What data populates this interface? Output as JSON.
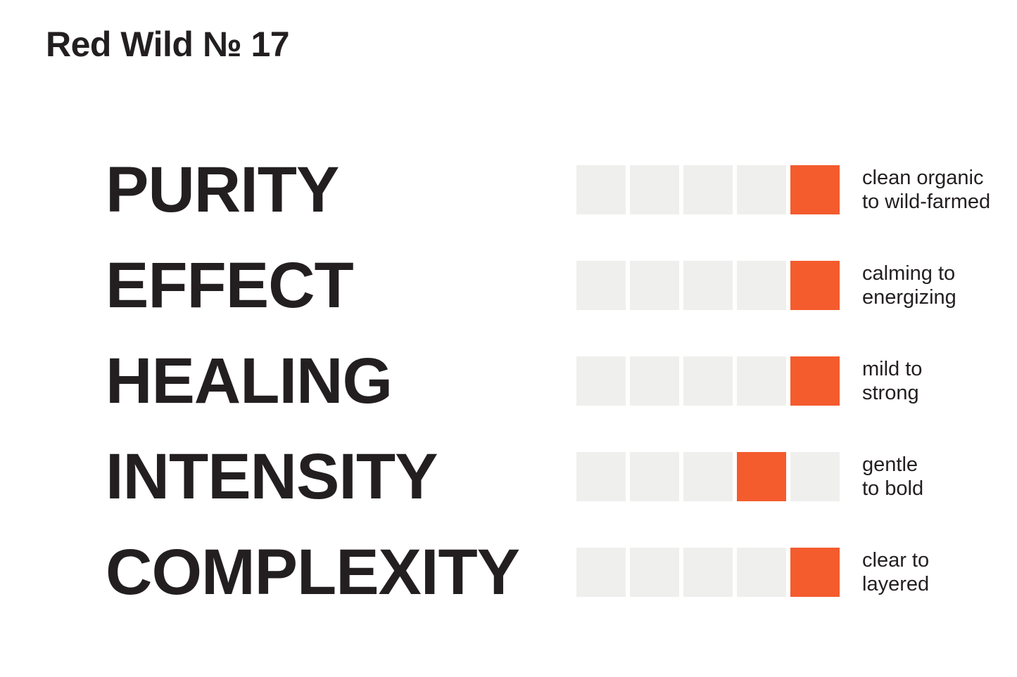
{
  "title": "Red Wild № 17",
  "colors": {
    "accent": "#F45B2D",
    "square_empty": "#EFEFEE",
    "text": "#231F20",
    "background": "#FFFFFF"
  },
  "scale": {
    "max": 5
  },
  "rows": [
    {
      "label": "PURITY",
      "value": 5,
      "description": "clean organic\nto wild-farmed"
    },
    {
      "label": "EFFECT",
      "value": 5,
      "description": "calming to\nenergizing"
    },
    {
      "label": "HEALING",
      "value": 5,
      "description": "mild to\nstrong"
    },
    {
      "label": "INTENSITY",
      "value": 4,
      "description": "gentle\nto bold"
    },
    {
      "label": "COMPLEXITY",
      "value": 5,
      "description": "clear to\nlayered"
    }
  ],
  "chart_data": {
    "type": "bar",
    "title": "Red Wild № 17",
    "categories": [
      "PURITY",
      "EFFECT",
      "HEALING",
      "INTENSITY",
      "COMPLEXITY"
    ],
    "values": [
      5,
      5,
      5,
      4,
      5
    ],
    "scale": {
      "min": 1,
      "max": 5,
      "style": "single-filled-square"
    },
    "annotations": [
      "clean organic to wild-farmed",
      "calming to energizing",
      "mild to strong",
      "gentle to bold",
      "clear to layered"
    ],
    "legend_position": "none",
    "grid": false
  }
}
